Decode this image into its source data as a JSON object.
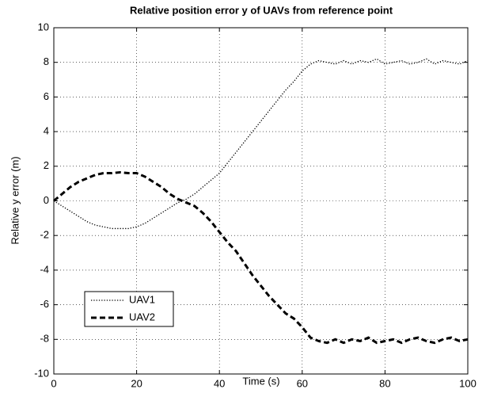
{
  "chart_data": {
    "type": "line",
    "title": "Relative position error y of UAVs from reference point",
    "xlabel": "Time (s)",
    "ylabel": "Relative y error (m)",
    "x": [
      0,
      2,
      4,
      6,
      8,
      10,
      12,
      14,
      16,
      18,
      20,
      22,
      24,
      26,
      28,
      30,
      32,
      34,
      36,
      38,
      40,
      42,
      44,
      46,
      48,
      50,
      52,
      54,
      56,
      58,
      60,
      62,
      64,
      66,
      68,
      70,
      72,
      74,
      76,
      78,
      80,
      82,
      84,
      86,
      88,
      90,
      92,
      94,
      96,
      98,
      100
    ],
    "series": [
      {
        "name": "UAV1",
        "color": "#000000",
        "style": "dotted",
        "values": [
          0,
          -0.3,
          -0.6,
          -0.9,
          -1.2,
          -1.4,
          -1.5,
          -1.6,
          -1.6,
          -1.6,
          -1.5,
          -1.3,
          -1.0,
          -0.7,
          -0.4,
          -0.1,
          0.1,
          0.4,
          0.8,
          1.2,
          1.6,
          2.2,
          2.8,
          3.4,
          4.0,
          4.6,
          5.2,
          5.8,
          6.4,
          6.9,
          7.5,
          7.9,
          8.1,
          8.0,
          7.9,
          8.1,
          7.9,
          8.1,
          8.0,
          8.2,
          7.9,
          8.0,
          8.1,
          7.9,
          8.0,
          8.2,
          7.9,
          8.1,
          8.0,
          7.9,
          8.1
        ]
      },
      {
        "name": "UAV2",
        "color": "#000000",
        "style": "dashed",
        "values": [
          0,
          0.4,
          0.8,
          1.1,
          1.3,
          1.5,
          1.6,
          1.6,
          1.65,
          1.6,
          1.6,
          1.4,
          1.1,
          0.8,
          0.4,
          0.1,
          -0.1,
          -0.3,
          -0.7,
          -1.2,
          -1.8,
          -2.4,
          -2.9,
          -3.6,
          -4.3,
          -4.9,
          -5.5,
          -6.0,
          -6.5,
          -6.8,
          -7.3,
          -7.9,
          -8.1,
          -8.2,
          -8.0,
          -8.2,
          -8.0,
          -8.1,
          -7.9,
          -8.2,
          -8.1,
          -8.0,
          -8.2,
          -8.0,
          -7.9,
          -8.1,
          -8.2,
          -8.0,
          -7.9,
          -8.1,
          -8.0
        ]
      }
    ],
    "xlim": [
      0,
      100
    ],
    "xticks": [
      0,
      20,
      40,
      60,
      80,
      100
    ],
    "ylim": [
      -10,
      10
    ],
    "yticks": [
      -10,
      -8,
      -6,
      -4,
      -2,
      0,
      2,
      4,
      6,
      8,
      10
    ],
    "grid": true,
    "legend": "lower left"
  }
}
